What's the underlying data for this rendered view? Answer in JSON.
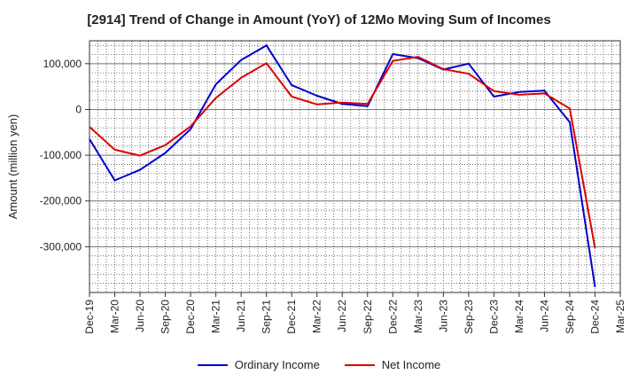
{
  "chart_data": {
    "type": "line",
    "title": "[2914]  Trend of Change in Amount (YoY) of 12Mo Moving Sum of Incomes",
    "ylabel": "Amount (million yen)",
    "xlabel": "",
    "ylim": [
      -400000,
      150000
    ],
    "yticks": [
      100000,
      0,
      -100000,
      -200000,
      -300000
    ],
    "ytick_labels": [
      "100,000",
      "0",
      "-100,000",
      "-200,000",
      "-300,000"
    ],
    "categories": [
      "Dec-19",
      "Mar-20",
      "Jun-20",
      "Sep-20",
      "Dec-20",
      "Mar-21",
      "Jun-21",
      "Sep-21",
      "Dec-21",
      "Mar-22",
      "Jun-22",
      "Sep-22",
      "Dec-22",
      "Mar-23",
      "Jun-23",
      "Sep-23",
      "Dec-23",
      "Mar-24",
      "Jun-24",
      "Sep-24",
      "Dec-24",
      "Mar-25"
    ],
    "grid": true,
    "legend_position": "bottom",
    "series": [
      {
        "name": "Ordinary Income",
        "color": "#0000cc",
        "values": [
          -65000,
          -155000,
          -132000,
          -95000,
          -43000,
          55000,
          108000,
          140000,
          53000,
          30000,
          12000,
          7000,
          121000,
          112000,
          87000,
          100000,
          28000,
          38000,
          41000,
          -28000,
          -388000,
          null
        ]
      },
      {
        "name": "Net Income",
        "color": "#dd0000",
        "values": [
          -38000,
          -88000,
          -101000,
          -78000,
          -37000,
          25000,
          69000,
          101000,
          28000,
          11000,
          15000,
          12000,
          106000,
          115000,
          88000,
          78000,
          40000,
          32000,
          35000,
          2000,
          -303000,
          null
        ]
      }
    ]
  }
}
